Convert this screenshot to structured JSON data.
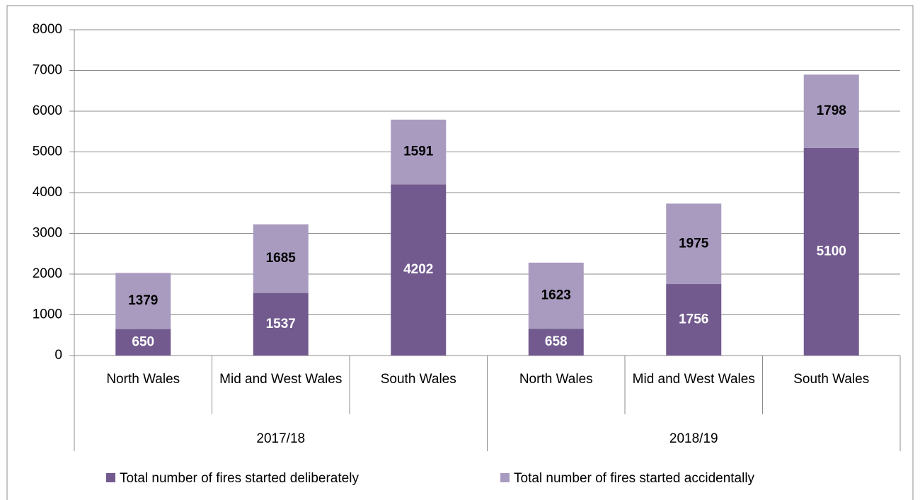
{
  "chart_data": {
    "type": "stacked_bar",
    "groups": [
      {
        "name": "2017/18",
        "categories": [
          "North Wales",
          "Mid and West Wales",
          "South Wales"
        ]
      },
      {
        "name": "2018/19",
        "categories": [
          "North Wales",
          "Mid and West Wales",
          "South Wales"
        ]
      }
    ],
    "series": [
      {
        "name": "Total number of fires started deliberately",
        "color": "#725a8f",
        "label_color": "#ffffff",
        "values": [
          650,
          1537,
          4202,
          658,
          1756,
          5100
        ]
      },
      {
        "name": "Total number of fires started accidentally",
        "color": "#a99bbf",
        "label_color": "#000000",
        "values": [
          1379,
          1685,
          1591,
          1623,
          1975,
          1798
        ]
      }
    ],
    "ylim": [
      0,
      8000
    ],
    "yticks": [
      0,
      1000,
      2000,
      3000,
      4000,
      5000,
      6000,
      7000,
      8000
    ],
    "grid": true,
    "legend": "bottom"
  }
}
